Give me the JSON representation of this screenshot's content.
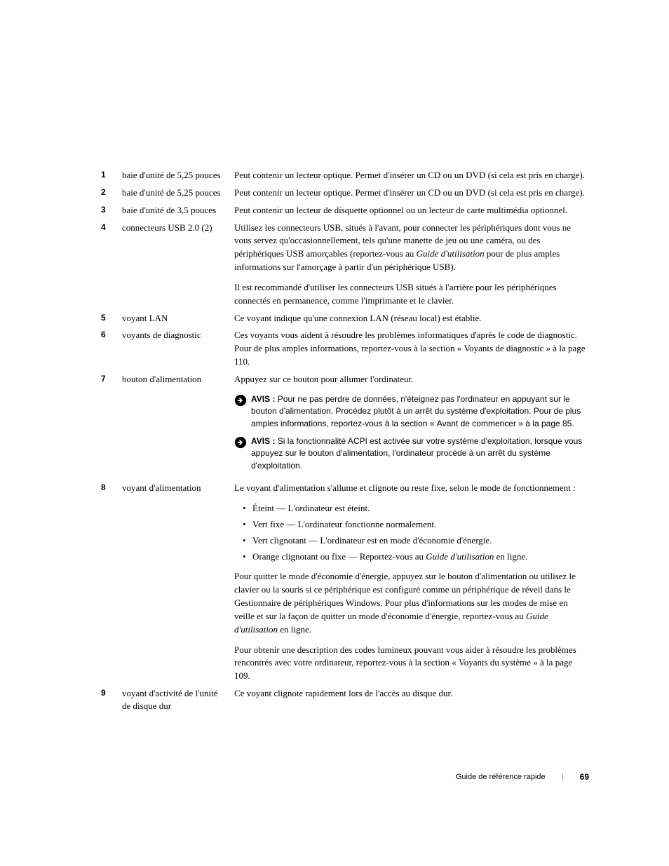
{
  "rows": [
    {
      "num": "1",
      "term": "baie d'unité de 5,25 pouces",
      "desc_html": "<div class='para'>Peut contenir un lecteur optique. Permet d'insérer un CD ou un DVD (si cela est pris en charge).</div>"
    },
    {
      "num": "2",
      "term": "baie d'unité de 5,25 pouces",
      "desc_html": "<div class='para'>Peut contenir un lecteur optique. Permet d'insérer un CD ou un DVD (si cela est pris en charge).</div>"
    },
    {
      "num": "3",
      "term": "baie d'unité de 3,5 pouces",
      "desc_html": "<div class='para'>Peut contenir un lecteur de disquette optionnel ou un lecteur de carte multimédia optionnel.</div>"
    },
    {
      "num": "4",
      "term": "connecteurs USB 2.0 (2)",
      "desc_html": "<div class='para'>Utilisez les connecteurs USB, situés à l'avant, pour connecter les périphériques dont vous ne vous servez qu'occasionnellement, tels qu'une manette de jeu ou une caméra, ou des périphériques USB amorçables (reportez-vous au <span class='italic'>Guide d'utilisation</span> pour de plus amples informations sur l'amorçage à partir d'un périphérique USB).</div><div class='para'>Il est recommandé d'utiliser les connecteurs USB situés à l'arrière pour les périphériques connectés en permanence, comme l'imprimante et le clavier.</div>"
    },
    {
      "num": "5",
      "term": "voyant LAN",
      "desc_html": "<div class='para'>Ce voyant indique qu'une connexion LAN (réseau local) est établie.</div>"
    },
    {
      "num": "6",
      "term": "voyants de diagnostic",
      "desc_html": "<div class='para'>Ces voyants vous aident à résoudre les problèmes informatiques d'après le code de diagnostic. Pour de plus amples informations, reportez-vous à la section «&nbsp;Voyants de diagnostic&nbsp;» à la page 110.</div>"
    },
    {
      "num": "7",
      "term": "bouton d'alimentation",
      "desc_html": "<div class='para'>Appuyez sur ce bouton pour allumer l'ordinateur.</div>",
      "notices": [
        "Pour ne pas perdre de données, n'éteignez pas l'ordinateur en appuyant sur le bouton d'alimentation. Procédez plutôt à un arrêt du système d'exploitation. Pour de plus amples informations, reportez-vous à la section «&nbsp;Avant de commencer&nbsp;» à la page 85.",
        "Si la fonctionnalité ACPI est activée sur votre système d'exploitation, lorsque vous appuyez sur le bouton d'alimentation, l'ordinateur procède à un arrêt du système d'exploitation."
      ]
    },
    {
      "num": "8",
      "term": "voyant d'alimentation",
      "desc_html": "<div class='para'>Le voyant d'alimentation s'allume et clignote ou reste fixe, selon le mode de fonctionnement&nbsp;:</div>",
      "bullets": [
        "Éteint — L'ordinateur est éteint.",
        "Vert fixe — L'ordinateur fonctionne normalement.",
        "Vert clignotant — L'ordinateur est en mode d'économie d'énergie.",
        "Orange clignotant ou fixe — Reportez-vous au <span class='italic'>Guide d'utilisation</span> en ligne."
      ],
      "desc_after_html": "<div class='para'>Pour quitter le mode d'économie d'énergie, appuyez sur le bouton d'alimentation ou utilisez le clavier ou la souris si ce périphérique est configuré comme un périphérique de réveil dans le Gestionnaire de périphériques Windows. Pour plus d'informations sur les modes de mise en veille et sur la façon de quitter un mode d'économie d'énergie, reportez-vous au <span class='italic'>Guide d'utilisation</span> en ligne.</div><div class='para'>Pour obtenir une description des codes lumineux pouvant vous aider à résoudre les problèmes rencontrés avec votre ordinateur, reportez-vous à la section «&nbsp;Voyants du système&nbsp;» à la page 109.</div>"
    },
    {
      "num": "9",
      "term": "voyant d'activité de l'unité de disque dur",
      "desc_html": "<div class='para'>Ce voyant clignote rapidement lors de l'accès au disque dur.</div>"
    }
  ],
  "notice_label": "AVIS : ",
  "footer": {
    "title": "Guide de référence rapide",
    "page": "69"
  },
  "colors": {
    "text": "#000000",
    "background": "#ffffff",
    "icon_fill": "#000000",
    "icon_arrow": "#ffffff"
  },
  "typography": {
    "body_font": "Georgia, serif",
    "sans_font": "Arial, Helvetica, sans-serif",
    "body_size_pt": 10,
    "notice_size_pt": 9,
    "num_bold": true
  }
}
